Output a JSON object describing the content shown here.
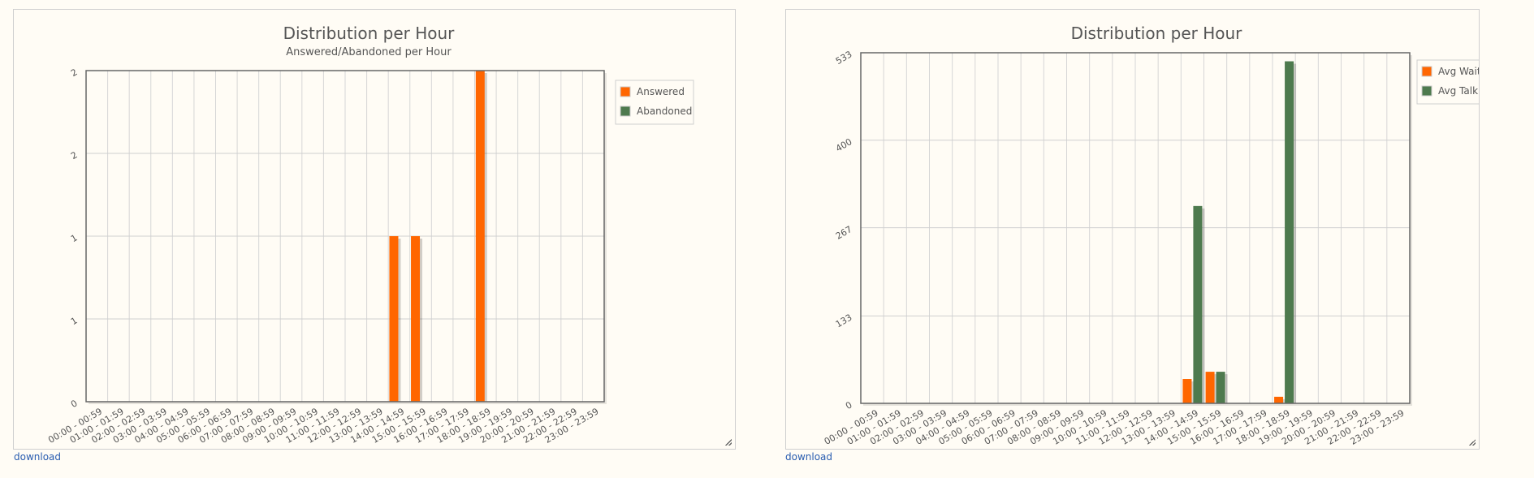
{
  "download_label": "download",
  "chart_data": [
    {
      "type": "bar",
      "title": "Distribution per Hour",
      "subtitle": "Answered/Abandoned per Hour",
      "xlabel": "",
      "ylabel": "",
      "categories": [
        "00:00 - 00:59",
        "01:00 - 01:59",
        "02:00 - 02:59",
        "03:00 - 03:59",
        "04:00 - 04:59",
        "05:00 - 05:59",
        "06:00 - 06:59",
        "07:00 - 07:59",
        "08:00 - 08:59",
        "09:00 - 09:59",
        "10:00 - 10:59",
        "11:00 - 11:59",
        "12:00 - 12:59",
        "13:00 - 13:59",
        "14:00 - 14:59",
        "15:00 - 15:59",
        "16:00 - 16:59",
        "17:00 - 17:59",
        "18:00 - 18:59",
        "19:00 - 19:59",
        "20:00 - 20:59",
        "21:00 - 21:59",
        "22:00 - 22:59",
        "23:00 - 23:59"
      ],
      "ylim": [
        0,
        2
      ],
      "yticks": [
        0,
        0.5,
        1,
        1.5,
        2
      ],
      "ytick_labels": [
        "0",
        "1",
        "1",
        "2",
        "2"
      ],
      "series": [
        {
          "name": "Answered",
          "color": "#ff6600",
          "values": [
            0,
            0,
            0,
            0,
            0,
            0,
            0,
            0,
            0,
            0,
            0,
            0,
            0,
            0,
            1,
            1,
            0,
            0,
            2,
            0,
            0,
            0,
            0,
            0
          ]
        },
        {
          "name": "Abandoned",
          "color": "#4e7a4e",
          "values": [
            0,
            0,
            0,
            0,
            0,
            0,
            0,
            0,
            0,
            0,
            0,
            0,
            0,
            0,
            0,
            0,
            0,
            0,
            0,
            0,
            0,
            0,
            0,
            0
          ]
        }
      ],
      "legend": "top-right",
      "grid": true
    },
    {
      "type": "bar",
      "title": "Distribution per Hour",
      "xlabel": "",
      "ylabel": "",
      "categories": [
        "00:00 - 00:59",
        "01:00 - 01:59",
        "02:00 - 02:59",
        "03:00 - 03:59",
        "04:00 - 04:59",
        "05:00 - 05:59",
        "06:00 - 06:59",
        "07:00 - 07:59",
        "08:00 - 08:59",
        "09:00 - 09:59",
        "10:00 - 10:59",
        "11:00 - 11:59",
        "12:00 - 12:59",
        "13:00 - 13:59",
        "14:00 - 14:59",
        "15:00 - 15:59",
        "16:00 - 16:59",
        "17:00 - 17:59",
        "18:00 - 18:59",
        "19:00 - 19:59",
        "20:00 - 20:59",
        "21:00 - 21:59",
        "22:00 - 22:59",
        "23:00 - 23:59"
      ],
      "ylim": [
        0,
        533
      ],
      "yticks": [
        0,
        133,
        267,
        400,
        533
      ],
      "ytick_labels": [
        "0",
        "133",
        "267",
        "400",
        "533"
      ],
      "series": [
        {
          "name": "Avg Wait",
          "color": "#ff6600",
          "values": [
            0,
            0,
            0,
            0,
            0,
            0,
            0,
            0,
            0,
            0,
            0,
            0,
            0,
            0,
            37,
            48,
            0,
            0,
            10,
            0,
            0,
            0,
            0,
            0
          ]
        },
        {
          "name": "Avg Talk",
          "color": "#4e7a4e",
          "values": [
            0,
            0,
            0,
            0,
            0,
            0,
            0,
            0,
            0,
            0,
            0,
            0,
            0,
            0,
            300,
            48,
            0,
            0,
            520,
            0,
            0,
            0,
            0,
            0
          ]
        }
      ],
      "legend": "top-right",
      "grid": true
    }
  ]
}
